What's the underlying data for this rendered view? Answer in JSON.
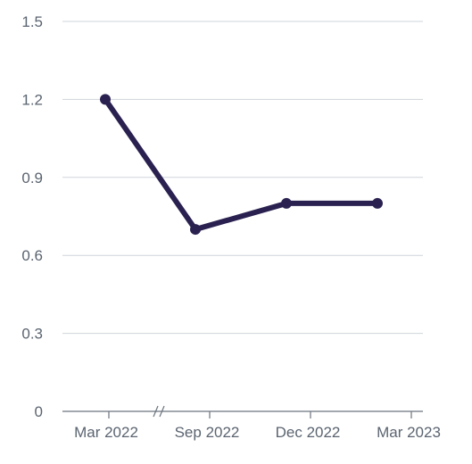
{
  "chart_data": {
    "type": "line",
    "title": "",
    "xlabel": "",
    "ylabel": "",
    "ylim": [
      0,
      1.5
    ],
    "y_ticks": [
      "0",
      "0.3",
      "0.6",
      "0.9",
      "1.2",
      "1.5"
    ],
    "y_tick_values": [
      0,
      0.3,
      0.6,
      0.9,
      1.2,
      1.5
    ],
    "x_ticks": [
      "Mar 2022",
      "Sep 2022",
      "Dec 2022",
      "Mar 2023"
    ],
    "x_axis_break": "between Mar 2022 and Sep 2022",
    "grid": true,
    "series": [
      {
        "color": "#2a2150",
        "points": [
          {
            "x": "Mar 2022",
            "y": 1.2
          },
          {
            "x": "Sep 2022",
            "y": 0.7
          },
          {
            "x": "Dec 2022",
            "y": 0.8
          },
          {
            "x": "Mar 2023",
            "y": 0.8
          }
        ]
      }
    ]
  }
}
